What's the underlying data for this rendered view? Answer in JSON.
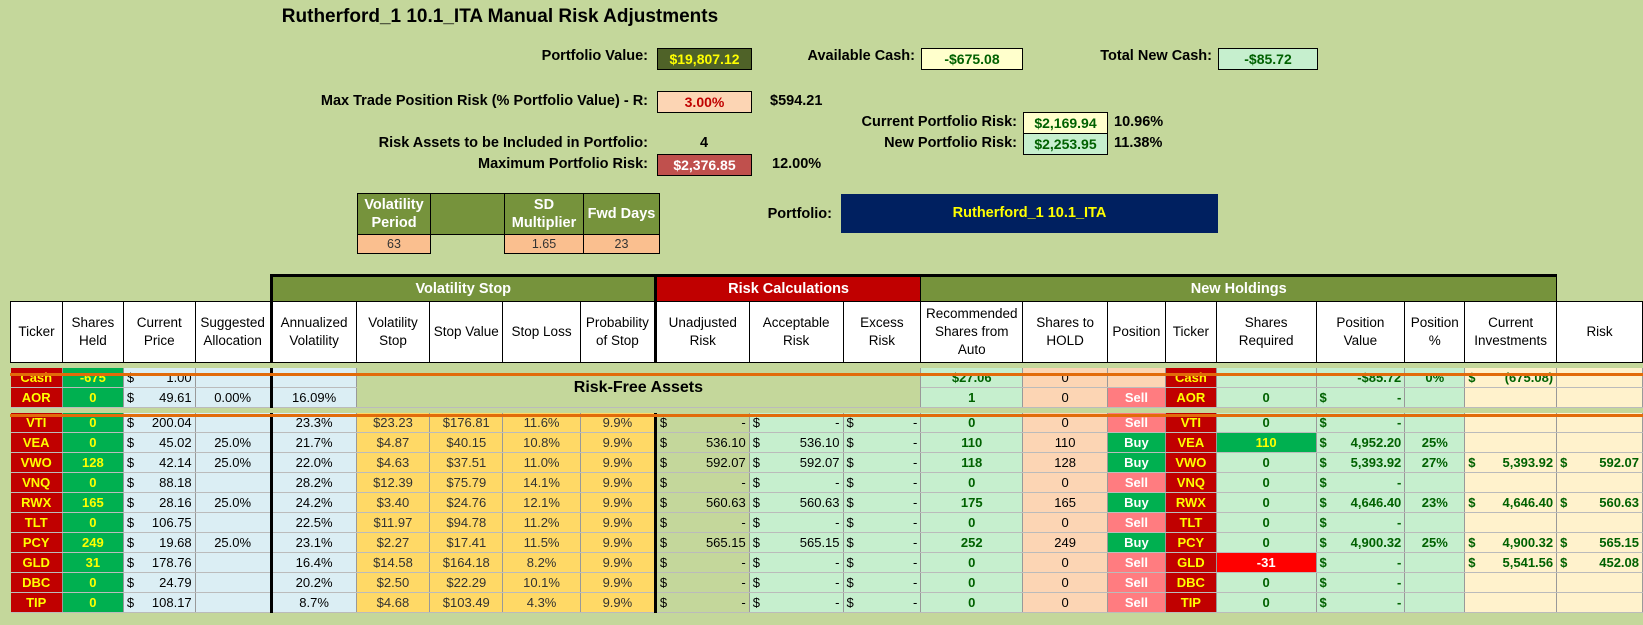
{
  "title": "Rutherford_1 10.1_ITA Manual Risk Adjustments",
  "summary": {
    "portfolio_value_label": "Portfolio Value:",
    "portfolio_value": "$19,807.12",
    "available_cash_label": "Available Cash:",
    "available_cash": "-$675.08",
    "total_new_cash_label": "Total New Cash:",
    "total_new_cash": "-$85.72",
    "max_trade_label": "Max Trade Position Risk (% Portfolio Value) - R:",
    "max_trade_pct": "3.00%",
    "max_trade_amt": "$594.21",
    "current_risk_label": "Current Portfolio Risk:",
    "current_risk_amt": "$2,169.94",
    "current_risk_pct": "10.96%",
    "new_risk_label": "New Portfolio Risk:",
    "new_risk_amt": "$2,253.95",
    "new_risk_pct": "11.38%",
    "risk_assets_label": "Risk Assets to be Included in Portfolio:",
    "risk_assets_value": "4",
    "max_port_risk_label": "Maximum Portfolio Risk:",
    "max_port_risk_amt": "$2,376.85",
    "max_port_risk_pct": "12.00%",
    "portfolio_label": "Portfolio:",
    "portfolio_name": "Rutherford_1 10.1_ITA"
  },
  "params": {
    "vol_period_label": "Volatility Period",
    "vol_period": "63",
    "sd_label": "SD Multiplier",
    "sd": "1.65",
    "fwd_label": "Fwd Days",
    "fwd": "23"
  },
  "groups": {
    "vol_stop": "Volatility Stop",
    "risk_calc": "Risk Calculations",
    "new_holdings": "New Holdings"
  },
  "headers": [
    "Ticker",
    "Shares Held",
    "Current Price",
    "Suggested Allocation",
    "Annualized Volatility",
    "Volatility Stop",
    "Stop Value",
    "Stop Loss",
    "Probability of Stop",
    "Unadjusted Risk",
    "Acceptable Risk",
    "Excess Risk",
    "Recommended Shares from Auto",
    "Shares to HOLD",
    "Position",
    "Ticker",
    "Shares Required",
    "Position Value",
    "Position %",
    "Current Investments",
    "Risk"
  ],
  "risk_free_label": "Risk-Free Assets",
  "cash_row": {
    "ticker": "Cash",
    "held": "-675",
    "price": "1.00",
    "rec": "$27.06",
    "hold": "0",
    "ticker2": "Cash",
    "pos_value": "-$85.72",
    "pos_pct": "0%",
    "cur_inv": "(675.08)"
  },
  "aor_row": {
    "ticker": "AOR",
    "held": "0",
    "price": "49.61",
    "alloc": "0.00%",
    "ann_vol": "16.09%",
    "rec": "1",
    "hold": "0",
    "position": "Sell",
    "ticker2": "AOR",
    "req": "0",
    "pos_value": "-"
  },
  "rows": [
    {
      "ticker": "VTI",
      "held": "0",
      "price": "200.04",
      "alloc": "",
      "ann_vol": "23.3%",
      "vol_stop": "$23.23",
      "stop_value": "$176.81",
      "stop_loss": "11.6%",
      "prob": "9.9%",
      "unadj": "-",
      "accept": "-",
      "excess": "-",
      "rec": "0",
      "hold": "0",
      "position": "Sell",
      "req": "0",
      "req_neg": false,
      "pos_value": "-",
      "pos_pct": "",
      "cur_inv": "",
      "risk": ""
    },
    {
      "ticker": "VEA",
      "held": "0",
      "price": "45.02",
      "alloc": "25.0%",
      "ann_vol": "21.7%",
      "vol_stop": "$4.87",
      "stop_value": "$40.15",
      "stop_loss": "10.8%",
      "prob": "9.9%",
      "unadj": "536.10",
      "accept": "536.10",
      "excess": "-",
      "rec": "110",
      "hold": "110",
      "position": "Buy",
      "req": "110",
      "req_neg": false,
      "pos_value": "4,952.20",
      "pos_pct": "25%",
      "cur_inv": "",
      "risk": ""
    },
    {
      "ticker": "VWO",
      "held": "128",
      "price": "42.14",
      "alloc": "25.0%",
      "ann_vol": "22.0%",
      "vol_stop": "$4.63",
      "stop_value": "$37.51",
      "stop_loss": "11.0%",
      "prob": "9.9%",
      "unadj": "592.07",
      "accept": "592.07",
      "excess": "-",
      "rec": "118",
      "hold": "128",
      "position": "Buy",
      "req": "0",
      "req_neg": false,
      "pos_value": "5,393.92",
      "pos_pct": "27%",
      "cur_inv": "5,393.92",
      "risk": "592.07"
    },
    {
      "ticker": "VNQ",
      "held": "0",
      "price": "88.18",
      "alloc": "",
      "ann_vol": "28.2%",
      "vol_stop": "$12.39",
      "stop_value": "$75.79",
      "stop_loss": "14.1%",
      "prob": "9.9%",
      "unadj": "-",
      "accept": "-",
      "excess": "-",
      "rec": "0",
      "hold": "0",
      "position": "Sell",
      "req": "0",
      "req_neg": false,
      "pos_value": "-",
      "pos_pct": "",
      "cur_inv": "",
      "risk": ""
    },
    {
      "ticker": "RWX",
      "held": "165",
      "price": "28.16",
      "alloc": "25.0%",
      "ann_vol": "24.2%",
      "vol_stop": "$3.40",
      "stop_value": "$24.76",
      "stop_loss": "12.1%",
      "prob": "9.9%",
      "unadj": "560.63",
      "accept": "560.63",
      "excess": "-",
      "rec": "175",
      "hold": "165",
      "position": "Buy",
      "req": "0",
      "req_neg": false,
      "pos_value": "4,646.40",
      "pos_pct": "23%",
      "cur_inv": "4,646.40",
      "risk": "560.63"
    },
    {
      "ticker": "TLT",
      "held": "0",
      "price": "106.75",
      "alloc": "",
      "ann_vol": "22.5%",
      "vol_stop": "$11.97",
      "stop_value": "$94.78",
      "stop_loss": "11.2%",
      "prob": "9.9%",
      "unadj": "-",
      "accept": "-",
      "excess": "-",
      "rec": "0",
      "hold": "0",
      "position": "Sell",
      "req": "0",
      "req_neg": false,
      "pos_value": "-",
      "pos_pct": "",
      "cur_inv": "",
      "risk": ""
    },
    {
      "ticker": "PCY",
      "held": "249",
      "price": "19.68",
      "alloc": "25.0%",
      "ann_vol": "23.1%",
      "vol_stop": "$2.27",
      "stop_value": "$17.41",
      "stop_loss": "11.5%",
      "prob": "9.9%",
      "unadj": "565.15",
      "accept": "565.15",
      "excess": "-",
      "rec": "252",
      "hold": "249",
      "position": "Buy",
      "req": "0",
      "req_neg": false,
      "pos_value": "4,900.32",
      "pos_pct": "25%",
      "cur_inv": "4,900.32",
      "risk": "565.15"
    },
    {
      "ticker": "GLD",
      "held": "31",
      "price": "178.76",
      "alloc": "",
      "ann_vol": "16.4%",
      "vol_stop": "$14.58",
      "stop_value": "$164.18",
      "stop_loss": "8.2%",
      "prob": "9.9%",
      "unadj": "-",
      "accept": "-",
      "excess": "-",
      "rec": "0",
      "hold": "0",
      "position": "Sell",
      "req": "-31",
      "req_neg": true,
      "pos_value": "-",
      "pos_pct": "",
      "cur_inv": "5,541.56",
      "risk": "452.08"
    },
    {
      "ticker": "DBC",
      "held": "0",
      "price": "24.79",
      "alloc": "",
      "ann_vol": "20.2%",
      "vol_stop": "$2.50",
      "stop_value": "$22.29",
      "stop_loss": "10.1%",
      "prob": "9.9%",
      "unadj": "-",
      "accept": "-",
      "excess": "-",
      "rec": "0",
      "hold": "0",
      "position": "Sell",
      "req": "0",
      "req_neg": false,
      "pos_value": "-",
      "pos_pct": "",
      "cur_inv": "",
      "risk": ""
    },
    {
      "ticker": "TIP",
      "held": "0",
      "price": "108.17",
      "alloc": "",
      "ann_vol": "8.7%",
      "vol_stop": "$4.68",
      "stop_value": "$103.49",
      "stop_loss": "4.3%",
      "prob": "9.9%",
      "unadj": "-",
      "accept": "-",
      "excess": "-",
      "rec": "0",
      "hold": "0",
      "position": "Sell",
      "req": "0",
      "req_neg": false,
      "pos_value": "-",
      "pos_pct": "",
      "cur_inv": "",
      "risk": ""
    }
  ]
}
